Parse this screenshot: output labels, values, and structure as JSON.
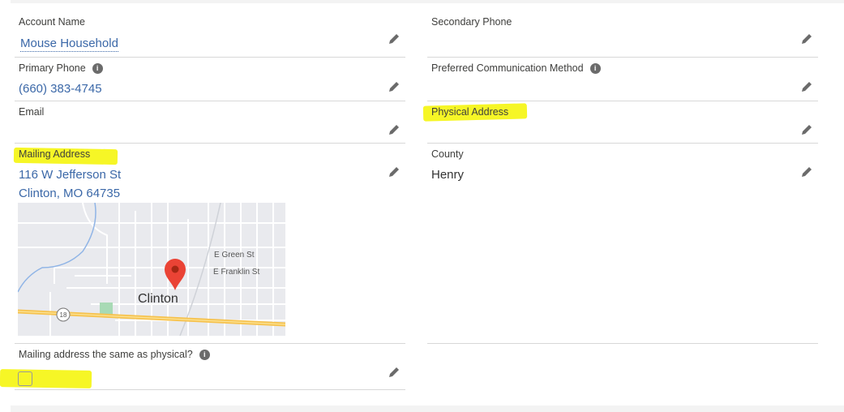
{
  "fields": {
    "account_name": {
      "label": "Account Name",
      "value": "Mouse Household"
    },
    "primary_phone": {
      "label": "Primary Phone",
      "value": "(660) 383-4745"
    },
    "email": {
      "label": "Email",
      "value": ""
    },
    "mailing_address": {
      "label": "Mailing Address",
      "line1": "116 W Jefferson St",
      "line2": "Clinton, MO 64735"
    },
    "secondary_phone": {
      "label": "Secondary Phone",
      "value": ""
    },
    "preferred_communication": {
      "label": "Preferred Communication Method",
      "value": ""
    },
    "physical_address": {
      "label": "Physical Address",
      "value": ""
    },
    "county": {
      "label": "County",
      "value": "Henry"
    },
    "mailing_same": {
      "label": "Mailing address the same as physical?",
      "checked": false
    }
  },
  "map": {
    "city_label": "Clinton",
    "streets": [
      "E Green St",
      "E Franklin St"
    ],
    "route": "18"
  },
  "icons": {
    "info": "info-icon",
    "edit": "pencil-icon"
  },
  "colors": {
    "link": "#3b68a8",
    "highlight": "#f5f500",
    "marker": "#ea4335"
  }
}
